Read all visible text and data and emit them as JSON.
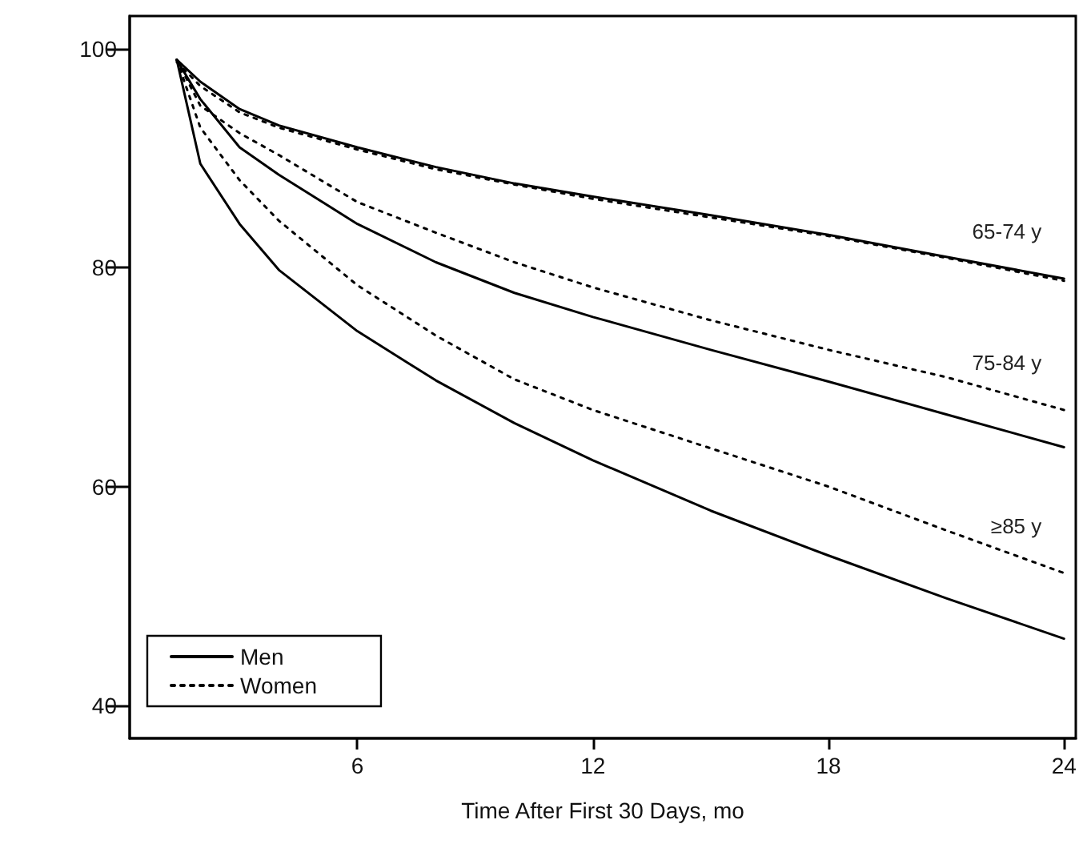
{
  "chart_data": {
    "type": "line",
    "xlabel": "Time After First 30 Days, mo",
    "xlim": [
      0.2,
      24.3
    ],
    "ylim": [
      37,
      103
    ],
    "xticks": [
      6,
      12,
      18,
      24
    ],
    "yticks": [
      40,
      60,
      80,
      100
    ],
    "grid": false,
    "legend": "bottom left",
    "marker": "none",
    "x": [
      1.4,
      2,
      3,
      4,
      6,
      8,
      10,
      12,
      15,
      18,
      21,
      24
    ],
    "series": [
      {
        "name": "Men",
        "color": "#000000",
        "line_style": "solid",
        "values": [
          99,
          97,
          94.5,
          93,
          91,
          89.2,
          87.7,
          86.5,
          84.8,
          83,
          81,
          79
        ]
      },
      {
        "name": "Women",
        "color": "#000000",
        "line_style": "dotted",
        "values": [
          98.8,
          96.6,
          94.2,
          92.8,
          90.8,
          89,
          87.6,
          86.3,
          84.6,
          82.9,
          80.9,
          78.8
        ]
      },
      {
        "color": "#000000",
        "line_style": "solid",
        "values": [
          99,
          95.4,
          91,
          88.5,
          84,
          80.5,
          77.7,
          75.5,
          72.5,
          69.6,
          66.6,
          63.6
        ]
      },
      {
        "color": "#000000",
        "line_style": "dotted",
        "values": [
          99,
          94.8,
          92.3,
          90.3,
          86,
          83.2,
          80.5,
          78.2,
          75.2,
          72.5,
          70,
          67
        ]
      },
      {
        "color": "#000000",
        "line_style": "solid",
        "values": [
          99,
          89.5,
          84,
          79.8,
          74.2,
          69.7,
          65.8,
          62.4,
          57.8,
          53.7,
          49.8,
          46.1
        ]
      },
      {
        "color": "#000000",
        "line_style": "dotted",
        "values": [
          99,
          92.8,
          88,
          84.3,
          78.4,
          73.8,
          69.8,
          67,
          63.5,
          60,
          56,
          52.1
        ]
      }
    ],
    "annotations": [
      "65-74 y",
      "75-84 y",
      "≥85 y"
    ]
  }
}
